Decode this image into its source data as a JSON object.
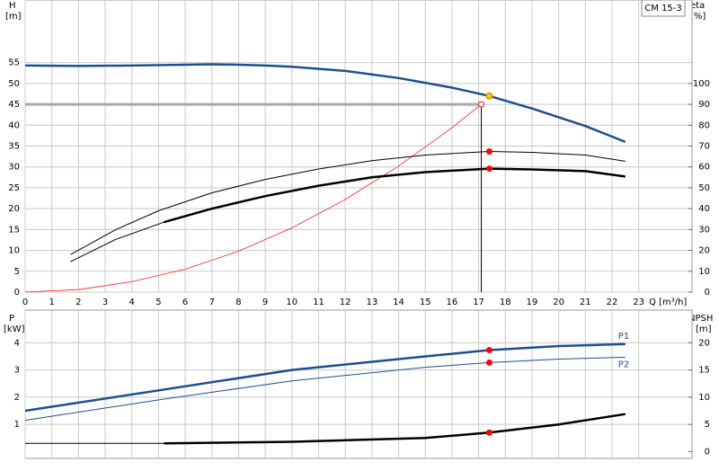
{
  "chart_data": [
    {
      "type": "line",
      "title": "CM 15-3",
      "ylabel": "H",
      "yunit": "[m]",
      "y2label": "eta",
      "y2unit": "[%]",
      "xlabel": "Q [m³/h]",
      "xlim": [
        0,
        25
      ],
      "xticks": [
        0,
        1,
        2,
        3,
        4,
        5,
        6,
        7,
        8,
        9,
        10,
        11,
        12,
        13,
        14,
        15,
        16,
        17,
        18,
        19,
        20,
        21,
        22,
        23
      ],
      "ylim": [
        0,
        70
      ],
      "yticks": [
        0,
        5,
        10,
        15,
        20,
        25,
        30,
        35,
        40,
        45,
        50,
        55
      ],
      "y2lim": [
        0,
        140
      ],
      "y2ticks": [
        0,
        10,
        20,
        30,
        40,
        50,
        60,
        70,
        80,
        90,
        100
      ],
      "grid": true,
      "series": [
        {
          "color": "#1f4e8c",
          "width": 2.5,
          "axis": "y",
          "x": [
            0,
            2,
            4,
            6,
            7,
            8,
            9,
            10,
            12,
            14,
            16,
            17.4,
            19,
            21,
            22.5
          ],
          "values": [
            54.3,
            54.2,
            54.3,
            54.5,
            54.6,
            54.5,
            54.3,
            54,
            53,
            51.3,
            49,
            47,
            44,
            39.8,
            36
          ]
        },
        {
          "color": "#ff2020",
          "width": 0.8,
          "axis": "y",
          "x": [
            0,
            2,
            4,
            6,
            8,
            10,
            12,
            14,
            16,
            17.1
          ],
          "values": [
            0,
            0.6,
            2.5,
            5.5,
            9.8,
            15.4,
            22.2,
            30.2,
            39.4,
            45
          ]
        },
        {
          "color": "#000000",
          "width": 1,
          "axis": "y2",
          "x": [
            1.7,
            3.4,
            5,
            7,
            9,
            11,
            13,
            15,
            17.4,
            19,
            21,
            22.5
          ],
          "values": [
            18,
            30,
            39,
            47.6,
            54,
            59,
            63,
            65.7,
            67.4,
            67,
            65.7,
            62.7
          ]
        },
        {
          "color": "#000000",
          "width": 1,
          "axis": "y2",
          "x": [
            1.7,
            3.4,
            5.2
          ],
          "values": [
            14.6,
            25.3,
            33.5
          ]
        },
        {
          "color": "#000000",
          "width": 2.5,
          "axis": "y2",
          "x": [
            5.2,
            7,
            9,
            11,
            13,
            15,
            17.4,
            19,
            21,
            22.5
          ],
          "values": [
            33.5,
            40,
            46,
            51,
            55,
            57.5,
            59.2,
            58.8,
            58,
            55.4
          ]
        }
      ],
      "duty": {
        "x": 17.1,
        "value": 45
      },
      "points": [
        {
          "x": 17.4,
          "value": 47,
          "axis": "y",
          "color": "#f5c400"
        },
        {
          "x": 17.4,
          "value": 67.4,
          "axis": "y2",
          "color": "#ff0000"
        },
        {
          "x": 17.4,
          "value": 59.2,
          "axis": "y2",
          "color": "#ff0000"
        }
      ]
    },
    {
      "type": "line",
      "ylabel": "P",
      "yunit": "[kW]",
      "y2label": "NPSH",
      "y2unit": "[m]",
      "xlim": [
        0,
        25
      ],
      "xticks": [
        0,
        1,
        2,
        3,
        4,
        5,
        6,
        7,
        8,
        9,
        10,
        11,
        12,
        13,
        14,
        15,
        16,
        17,
        18,
        19,
        20,
        21,
        22,
        23
      ],
      "xtick_labels": false,
      "ylim": [
        -0.25,
        5.2
      ],
      "yticks": [
        1,
        2,
        3,
        4
      ],
      "y2lim": [
        -1.25,
        26
      ],
      "y2ticks": [
        0,
        5,
        10,
        15,
        20
      ],
      "grid": true,
      "series": [
        {
          "name": "P1",
          "color": "#1f4e8c",
          "width": 2.5,
          "axis": "y",
          "x": [
            0,
            5,
            10,
            15,
            17.4,
            20,
            22.5
          ],
          "values": [
            1.5,
            2.25,
            3.0,
            3.5,
            3.73,
            3.88,
            3.95
          ]
        },
        {
          "name": "P2",
          "color": "#1f4e8c",
          "width": 1,
          "axis": "y",
          "x": [
            0,
            5,
            10,
            15,
            17.4,
            20,
            22.5
          ],
          "values": [
            1.15,
            1.9,
            2.6,
            3.1,
            3.27,
            3.4,
            3.47
          ]
        },
        {
          "color": "#000000",
          "width": 1,
          "axis": "y2",
          "x": [
            0,
            5.2
          ],
          "values": [
            1.5,
            1.5
          ]
        },
        {
          "color": "#000000",
          "width": 2.5,
          "axis": "y2",
          "x": [
            5.2,
            10,
            15,
            17.4,
            20,
            22.5
          ],
          "values": [
            1.5,
            1.8,
            2.5,
            3.5,
            5,
            6.9
          ]
        }
      ],
      "points": [
        {
          "x": 17.4,
          "value": 3.73,
          "axis": "y",
          "color": "#ff0000"
        },
        {
          "x": 17.4,
          "value": 3.27,
          "axis": "y",
          "color": "#ff0000"
        },
        {
          "x": 17.4,
          "value": 3.5,
          "axis": "y2",
          "color": "#ff0000"
        }
      ]
    }
  ]
}
